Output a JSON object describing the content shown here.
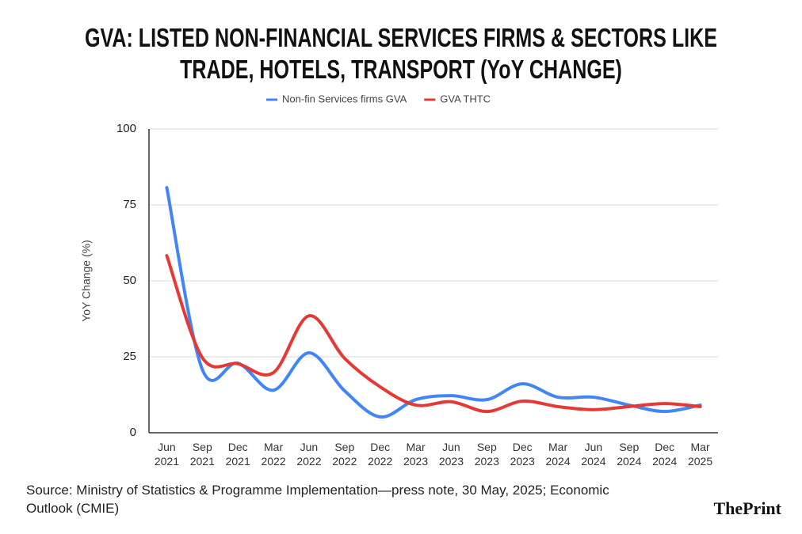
{
  "chart_data": {
    "type": "line",
    "title": "GVA: LISTED NON-FINANCIAL SERVICES FIRMS & SECTORS LIKE TRADE, HOTELS, TRANSPORT (YoY CHANGE)",
    "y_label": "YoY Change (%)",
    "source": "Source: Ministry of Statistics & Programme Implementation—press note, 30 May, 2025; Economic Outlook (CMIE)",
    "brand": "ThePrint",
    "categories": [
      "Jun 2021",
      "Sep 2021",
      "Dec 2021",
      "Mar 2022",
      "Jun 2022",
      "Sep 2022",
      "Dec 2022",
      "Mar 2023",
      "Jun 2023",
      "Sep 2023",
      "Dec 2023",
      "Mar 2024",
      "Jun 2024",
      "Sep 2024",
      "Dec 2024",
      "Mar 2025"
    ],
    "series": [
      {
        "name": "Non-fin Services firms GVA",
        "color": "#4285f4",
        "values": [
          80.7,
          20.8,
          22.9,
          14.0,
          26.3,
          13.8,
          5.2,
          10.9,
          12.2,
          10.9,
          16.1,
          11.7,
          11.7,
          9.1,
          7.0,
          9.1
        ]
      },
      {
        "name": "GVA THTC",
        "color": "#e53935",
        "values": [
          58.3,
          24.7,
          22.7,
          19.8,
          38.5,
          24.5,
          15.1,
          9.1,
          10.2,
          7.0,
          10.4,
          8.6,
          7.6,
          8.6,
          9.6,
          8.6
        ]
      }
    ],
    "ylim": [
      0,
      100
    ],
    "yticks": [
      0,
      25,
      50,
      75,
      100
    ],
    "grid": true,
    "legend": "top"
  }
}
